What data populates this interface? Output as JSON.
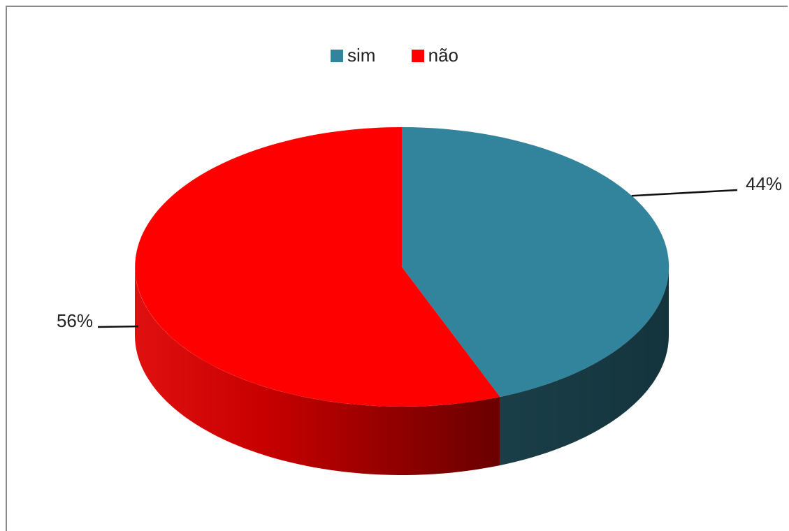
{
  "chart_data": {
    "type": "pie",
    "style": "3d",
    "legend_position": "top",
    "slices": [
      {
        "label": "sim",
        "value": 44,
        "display": "44%",
        "color": "#31849B"
      },
      {
        "label": "não",
        "value": 56,
        "display": "56%",
        "color": "#FF0000"
      }
    ]
  }
}
